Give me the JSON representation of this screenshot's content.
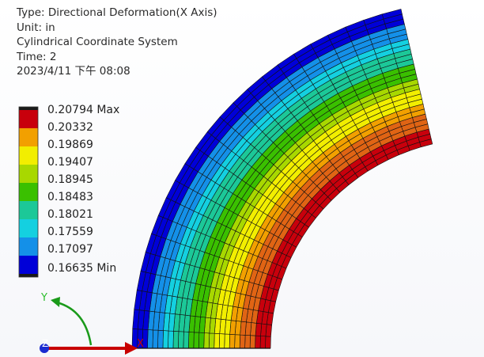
{
  "result_info": {
    "type_line": "Type: Directional Deformation(X Axis)",
    "unit_line": "Unit: in",
    "coord_line": "Cylindrical Coordinate System",
    "time_line": "Time: 2",
    "date_line": "2023/4/11 下午 08:08"
  },
  "legend": {
    "labels": [
      "0.20794 Max",
      "0.20332",
      "0.19869",
      "0.19407",
      "0.18945",
      "0.18483",
      "0.18021",
      "0.17559",
      "0.17097",
      "0.16635 Min"
    ],
    "band_colors": [
      "#c8000c",
      "#f2a000",
      "#f2ee00",
      "#a8d800",
      "#3ac000",
      "#1cc898",
      "#14d0e0",
      "#1490e8",
      "#0000d8"
    ]
  },
  "triad": {
    "y_axis_label": "Y",
    "x_axis_label": "X",
    "z_axis_label": "Z",
    "y_color": "#2dbd2d",
    "x_color": "#c80000",
    "z_color": "#1a2bd0",
    "rotation_color": "#1a9a1a"
  },
  "mesh": {
    "radial_divisions": 27,
    "angular_divisions": 24,
    "contour_colors": [
      "#c8000c",
      "#e06414",
      "#f2a000",
      "#f2ee00",
      "#a8d800",
      "#3ac000",
      "#1cc898",
      "#14d0e0",
      "#1490e8",
      "#0000d8"
    ]
  }
}
